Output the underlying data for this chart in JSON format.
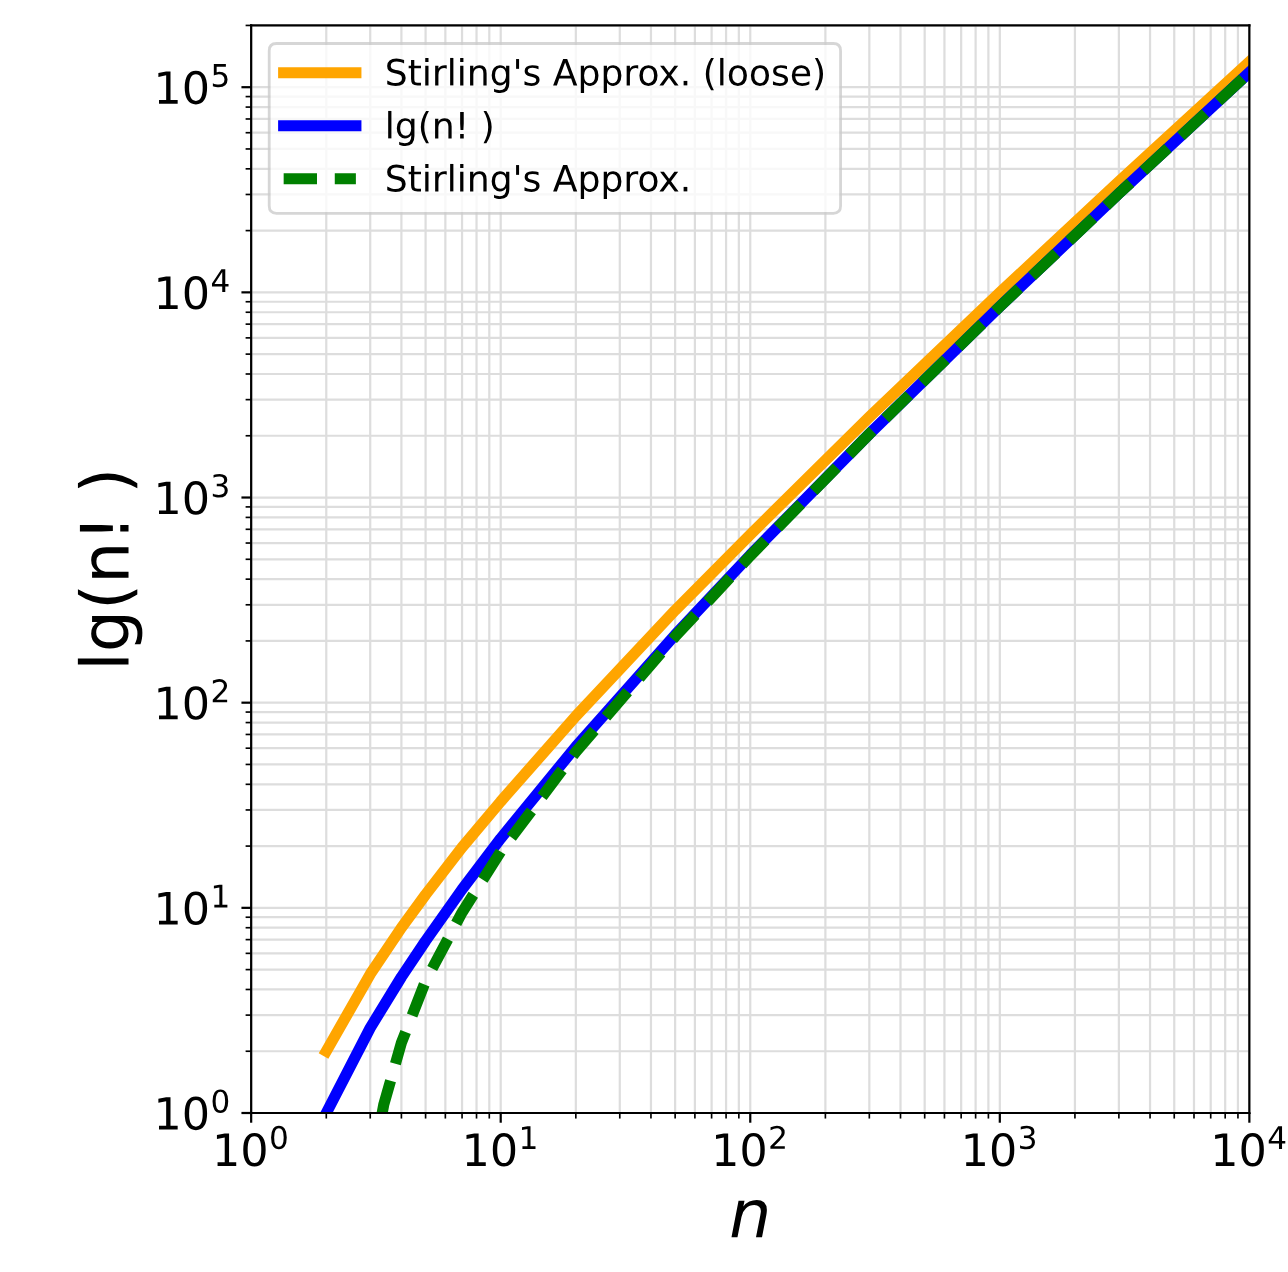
{
  "chart_data": {
    "type": "line",
    "xlabel": "n",
    "ylabel": "lg(n! )",
    "log": "xy",
    "xlim": [
      1,
      10000
    ],
    "ylim": [
      1,
      200000
    ],
    "xticks": [
      {
        "value": 1,
        "label": "10$^{0}$"
      },
      {
        "value": 10,
        "label": "10$^{1}$"
      },
      {
        "value": 100,
        "label": "10$^{2}$"
      },
      {
        "value": 1000,
        "label": "10$^{3}$"
      },
      {
        "value": 10000,
        "label": "10$^{4}$"
      }
    ],
    "yticks": [
      {
        "value": 1,
        "label": "10$^{0}$"
      },
      {
        "value": 10,
        "label": "10$^{1}$"
      },
      {
        "value": 100,
        "label": "10$^{2}$"
      },
      {
        "value": 1000,
        "label": "10$^{3}$"
      },
      {
        "value": 10000,
        "label": "10$^{4}$"
      },
      {
        "value": 100000,
        "label": "10$^{5}$"
      }
    ],
    "grid": true,
    "legend": "top left",
    "marker": "none",
    "series": [
      {
        "name": "Stirling's Approx. (loose)",
        "color": "#ffa500",
        "line_style": "solid",
        "x": [
          2,
          3,
          4,
          5,
          7,
          10,
          20,
          50,
          100,
          300,
          1000,
          3000,
          10000
        ],
        "values": [
          2,
          4.75,
          8,
          11.6,
          19.7,
          33,
          86,
          282,
          660,
          2470,
          9970,
          34700,
          133000
        ]
      },
      {
        "name": "lg(n! )",
        "color": "#0000ff",
        "line_style": "solid",
        "x": [
          2,
          3,
          4,
          5,
          7,
          10,
          20,
          50,
          100,
          300,
          1000,
          3000,
          10000
        ],
        "values": [
          1,
          2.6,
          4.6,
          6.9,
          12.3,
          21.8,
          61,
          214,
          525,
          2040,
          8530,
          30300,
          118000
        ]
      },
      {
        "name": "Stirling's Approx.",
        "color": "#008000",
        "line_style": "dashed",
        "x": [
          3.35,
          3.4,
          4,
          5,
          7,
          10,
          20,
          50,
          100,
          300,
          1000,
          3000,
          10000
        ],
        "values": [
          1,
          1.1,
          2.2,
          4.4,
          9.5,
          18.8,
          57.6,
          210,
          520,
          2040,
          8520,
          30300,
          118000
        ]
      }
    ]
  }
}
